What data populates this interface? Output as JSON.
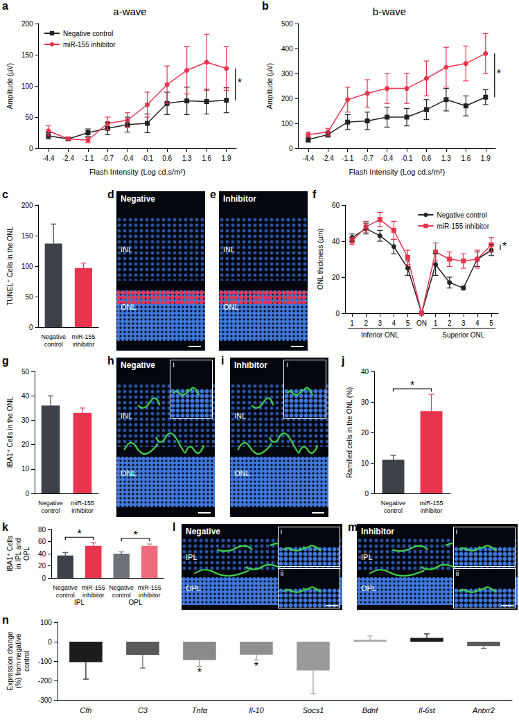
{
  "chart_data": [
    {
      "panel": "a",
      "type": "line",
      "title": "a-wave",
      "x_label": "Flash Intensity (Log cd.s/m²)",
      "y_label": "Amplitude (µV)",
      "categories": [
        "-4.4",
        "-2.4",
        "-1.1",
        "-0.7",
        "-0.4",
        "-0.1",
        "0.6",
        "1.3",
        "1.6",
        "1.9"
      ],
      "ylim": [
        0,
        200
      ],
      "yticks": [
        0,
        50,
        100,
        150,
        200
      ],
      "legend": "upper left",
      "significance": "*",
      "series": [
        {
          "name": "Negative control",
          "color": "#222222",
          "marker": "square",
          "values": [
            20,
            15,
            25,
            32,
            38,
            40,
            72,
            76,
            75,
            77
          ],
          "errors": [
            5,
            3,
            6,
            10,
            12,
            15,
            18,
            22,
            20,
            20
          ]
        },
        {
          "name": "miR-155 inhibitor",
          "color": "#e8344e",
          "marker": "circle",
          "values": [
            28,
            15,
            13,
            40,
            45,
            70,
            102,
            125,
            138,
            128
          ],
          "errors": [
            8,
            3,
            4,
            10,
            12,
            20,
            30,
            38,
            45,
            35
          ]
        }
      ]
    },
    {
      "panel": "b",
      "type": "line",
      "title": "b-wave",
      "x_label": "Flash Intensity (Log cd.s/m²)",
      "y_label": "Amplitude (µV)",
      "categories": [
        "-4.4",
        "-2.4",
        "-1.1",
        "-0.7",
        "-0.4",
        "-0.1",
        "0.6",
        "1.3",
        "1.6",
        "1.9"
      ],
      "ylim": [
        0,
        500
      ],
      "yticks": [
        0,
        100,
        200,
        300,
        400,
        500
      ],
      "significance": "*",
      "series": [
        {
          "name": "Negative control",
          "color": "#222222",
          "marker": "square",
          "values": [
            35,
            55,
            105,
            110,
            125,
            125,
            155,
            195,
            170,
            205
          ],
          "errors": [
            10,
            10,
            30,
            35,
            40,
            35,
            40,
            45,
            40,
            30
          ]
        },
        {
          "name": "miR-155 inhibitor",
          "color": "#e8344e",
          "marker": "circle",
          "values": [
            55,
            65,
            195,
            220,
            240,
            240,
            280,
            325,
            340,
            380
          ],
          "errors": [
            10,
            15,
            50,
            55,
            60,
            60,
            70,
            80,
            70,
            80
          ]
        }
      ]
    },
    {
      "panel": "c",
      "type": "bar",
      "y_label": "TUNEL⁺ Cells in the ONL",
      "categories": [
        "Negative control",
        "miR-155 inhibitor"
      ],
      "values": [
        137,
        97
      ],
      "errors": [
        32,
        8
      ],
      "colors": [
        "#3d4249",
        "#e8344e"
      ],
      "ylim": [
        0,
        200
      ],
      "yticks": [
        0,
        50,
        100,
        150,
        200
      ]
    },
    {
      "panel": "f",
      "type": "line",
      "y_label": "ONL thickness (µm)",
      "categories": [
        "1",
        "2",
        "3",
        "4",
        "5",
        "ON",
        "1",
        "2",
        "3",
        "4",
        "5"
      ],
      "groups": [
        "Inferior ONL",
        "Inferior ONL",
        "Inferior ONL",
        "Inferior ONL",
        "Inferior ONL",
        null,
        "Superior ONL",
        "Superior ONL",
        "Superior ONL",
        "Superior ONL",
        "Superior ONL"
      ],
      "ylim": [
        0,
        60
      ],
      "yticks": [
        0,
        20,
        40,
        60
      ],
      "legend": "upper right",
      "significance": "*",
      "series": [
        {
          "name": "Negative control",
          "color": "#222222",
          "marker": "circle",
          "values": [
            42,
            47,
            43,
            37,
            25,
            0,
            27,
            17,
            14,
            30,
            35
          ],
          "errors": [
            2,
            3,
            3,
            4,
            4,
            0,
            6,
            3,
            1,
            4,
            3
          ]
        },
        {
          "name": "miR-155 inhibitor",
          "color": "#e8344e",
          "marker": "square",
          "values": [
            40,
            48,
            52,
            46,
            31,
            0,
            34,
            30,
            29,
            30,
            38
          ],
          "errors": [
            2,
            3,
            4,
            5,
            4,
            0,
            5,
            4,
            4,
            5,
            4
          ]
        }
      ]
    },
    {
      "panel": "g",
      "type": "bar",
      "y_label": "IBA1⁺ Cells in the ONL",
      "categories": [
        "Negative control",
        "miR-155 inhibitor"
      ],
      "values": [
        36,
        33
      ],
      "errors": [
        4,
        2
      ],
      "colors": [
        "#3d4249",
        "#e8344e"
      ],
      "ylim": [
        0,
        50
      ],
      "yticks": [
        0,
        10,
        20,
        30,
        40,
        50
      ]
    },
    {
      "panel": "j",
      "type": "bar",
      "y_label": "Ramified cells in the ONL (%)",
      "categories": [
        "Negative control",
        "miR-155 inhibitor"
      ],
      "values": [
        11,
        27
      ],
      "errors": [
        1.5,
        5.5
      ],
      "colors": [
        "#3d4249",
        "#e8344e"
      ],
      "ylim": [
        0,
        40
      ],
      "yticks": [
        0,
        10,
        20,
        30,
        40
      ],
      "significance": "*"
    },
    {
      "panel": "k",
      "type": "bar",
      "y_label": "IBA1⁺ Cells in IPL and OPL",
      "categories": [
        "Negative control",
        "miR-155 inhibitor",
        "Negative control",
        "miR-155 inhibitor"
      ],
      "groups": [
        "IPL",
        "IPL",
        "OPL",
        "OPL"
      ],
      "values": [
        37,
        53,
        40,
        53
      ],
      "errors": [
        5,
        5,
        3,
        3
      ],
      "colors": [
        "#3d4249",
        "#e8344e",
        "#6d7279",
        "#f06a7e"
      ],
      "ylim": [
        0,
        80
      ],
      "yticks": [
        0,
        20,
        40,
        60,
        80
      ],
      "significance": "*"
    },
    {
      "panel": "n",
      "type": "bar",
      "y_label": "Expression change (%) from negative control",
      "categories": [
        "Cfh",
        "C3",
        "Tnfα",
        "Il-10",
        "Socs1",
        "Bdnf",
        "Il-6st",
        "Antxr2"
      ],
      "values": [
        -105,
        -68,
        -95,
        -67,
        -148,
        10,
        20,
        -22
      ],
      "errors": [
        88,
        68,
        33,
        27,
        120,
        20,
        20,
        13
      ],
      "colors": [
        "#1c1c1c",
        "#5a5a5a",
        "#8a8a8a",
        "#8f8f8f",
        "#9a9a9a",
        "#a8a8a8",
        "#1c1c1c",
        "#5a5a5a"
      ],
      "ylim": [
        -300,
        100
      ],
      "yticks": [
        -300,
        -200,
        -100,
        0,
        100
      ],
      "significant": [
        "Tnfα",
        "Il-10"
      ],
      "significance": "*"
    }
  ],
  "images": [
    {
      "panel": "d",
      "label": "Negative",
      "layers": [
        "INL",
        "ONL"
      ],
      "color": "#e8344e"
    },
    {
      "panel": "e",
      "label": "Inhibitor",
      "layers": [
        "INL",
        "ONL"
      ],
      "color": "#e8344e"
    },
    {
      "panel": "h",
      "label": "Negative",
      "layers": [
        "INL",
        "ONL"
      ],
      "insets": [
        "i"
      ],
      "color": "#3fd14a"
    },
    {
      "panel": "i",
      "label": "Inhibitor",
      "layers": [
        "INL",
        "ONL"
      ],
      "insets": [
        "i"
      ],
      "color": "#3fd14a"
    },
    {
      "panel": "l",
      "label": "Negative",
      "layers": [
        "IPL",
        "OPL"
      ],
      "insets": [
        "i",
        "ii"
      ],
      "color": "#3fd14a"
    },
    {
      "panel": "m",
      "label": "Inhibitor",
      "layers": [
        "IPL",
        "OPL"
      ],
      "insets": [
        "i",
        "ii"
      ],
      "color": "#3fd14a"
    }
  ]
}
